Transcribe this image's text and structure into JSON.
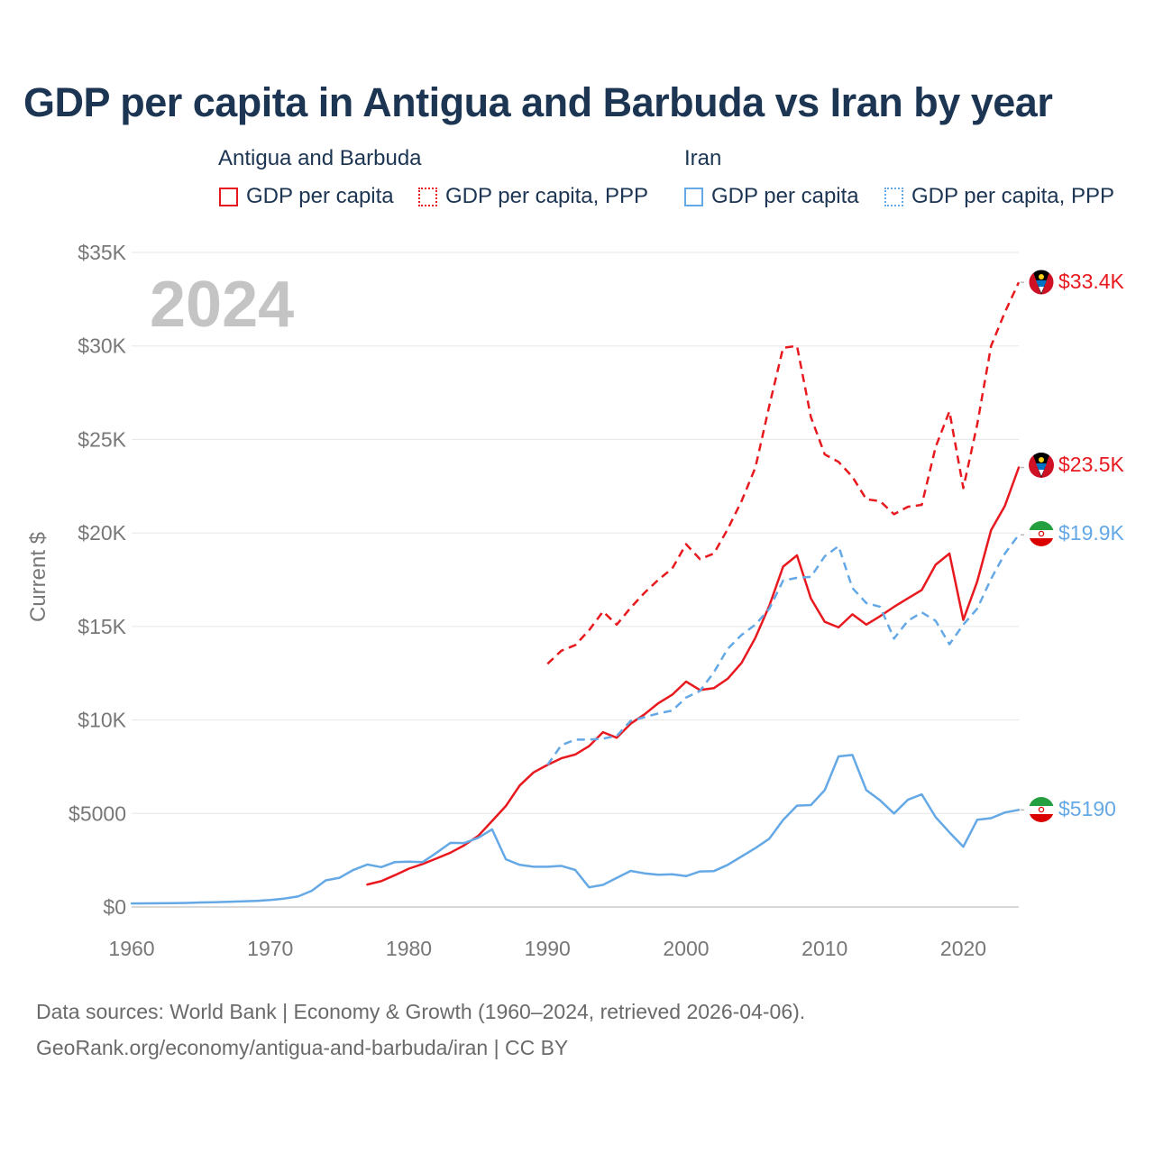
{
  "title": "GDP per capita in Antigua and Barbuda vs Iran by year",
  "legend": {
    "groups": [
      {
        "label": "Antigua and Barbuda",
        "color": "#e8191e",
        "items": [
          {
            "label": "GDP per capita",
            "style": "solid"
          },
          {
            "label": "GDP per capita, PPP",
            "style": "dotted"
          }
        ]
      },
      {
        "label": "Iran",
        "color": "#64a8e6",
        "items": [
          {
            "label": "GDP per capita",
            "style": "solid"
          },
          {
            "label": "GDP per capita, PPP",
            "style": "dotted"
          }
        ]
      }
    ]
  },
  "year_watermark": "2024",
  "end_labels": {
    "antigua_ppp": "$33.4K",
    "antigua_gdp": "$23.5K",
    "iran_ppp": "$19.9K",
    "iran_gdp": "$5190"
  },
  "source_line1": "Data sources: World Bank | Economy & Growth (1960–2024, retrieved 2026-04-06).",
  "source_line2": "GeoRank.org/economy/antigua-and-barbuda/iran | CC BY",
  "chart_data": {
    "type": "line",
    "title": "GDP per capita in Antigua and Barbuda vs Iran by year",
    "xlabel": "",
    "ylabel": "Current $",
    "xlim": [
      1960,
      2024
    ],
    "ylim": [
      0,
      35000
    ],
    "x_ticks": [
      1960,
      1970,
      1980,
      1990,
      2000,
      2010,
      2020
    ],
    "x_tick_labels": [
      "1960",
      "1970",
      "1980",
      "1990",
      "2000",
      "2010",
      "2020"
    ],
    "y_ticks": [
      0,
      5000,
      10000,
      15000,
      20000,
      25000,
      30000,
      35000
    ],
    "y_tick_labels": [
      "$0",
      "$5000",
      "$10K",
      "$15K",
      "$20K",
      "$25K",
      "$30K",
      "$35K"
    ],
    "grid": true,
    "series": [
      {
        "name": "Antigua and Barbuda GDP per capita",
        "color": "#e8191e",
        "dash": "solid",
        "x": [
          1977,
          1978,
          1979,
          1980,
          1981,
          1982,
          1983,
          1984,
          1985,
          1986,
          1987,
          1988,
          1989,
          1990,
          1991,
          1992,
          1993,
          1994,
          1995,
          1996,
          1997,
          1998,
          1999,
          2000,
          2001,
          2002,
          2003,
          2004,
          2005,
          2006,
          2007,
          2008,
          2009,
          2010,
          2011,
          2012,
          2013,
          2014,
          2015,
          2016,
          2017,
          2018,
          2019,
          2020,
          2021,
          2022,
          2023,
          2024
        ],
        "values": [
          1200,
          1380,
          1700,
          2050,
          2300,
          2600,
          2900,
          3300,
          3800,
          4600,
          5400,
          6500,
          7200,
          7600,
          7950,
          8150,
          8600,
          9350,
          9050,
          9800,
          10300,
          10900,
          11350,
          12050,
          11600,
          11700,
          12200,
          13050,
          14400,
          16100,
          18200,
          18800,
          16500,
          15250,
          14950,
          15650,
          15100,
          15550,
          16050,
          16500,
          16950,
          18300,
          18900,
          15350,
          17400,
          20150,
          21450,
          23500
        ]
      },
      {
        "name": "Antigua and Barbuda GDP per capita, PPP",
        "color": "#e8191e",
        "dash": "dashed",
        "x": [
          1990,
          1991,
          1992,
          1993,
          1994,
          1995,
          1996,
          1997,
          1998,
          1999,
          2000,
          2001,
          2002,
          2003,
          2004,
          2005,
          2006,
          2007,
          2008,
          2009,
          2010,
          2011,
          2012,
          2013,
          2014,
          2015,
          2016,
          2017,
          2018,
          2019,
          2020,
          2021,
          2022,
          2023,
          2024
        ],
        "values": [
          13000,
          13700,
          14000,
          14800,
          15800,
          15100,
          16000,
          16800,
          17500,
          18100,
          19400,
          18600,
          18900,
          20200,
          21700,
          23500,
          26800,
          29900,
          30000,
          26200,
          24200,
          23800,
          23000,
          21800,
          21700,
          21000,
          21400,
          21500,
          24600,
          26500,
          22400,
          25800,
          30000,
          31800,
          33400
        ]
      },
      {
        "name": "Iran GDP per capita",
        "color": "#64a8e6",
        "dash": "solid",
        "x": [
          1960,
          1961,
          1962,
          1963,
          1964,
          1965,
          1966,
          1967,
          1968,
          1969,
          1970,
          1971,
          1972,
          1973,
          1974,
          1975,
          1976,
          1977,
          1978,
          1979,
          1980,
          1981,
          1982,
          1983,
          1984,
          1985,
          1986,
          1987,
          1988,
          1989,
          1990,
          1991,
          1992,
          1993,
          1994,
          1995,
          1996,
          1997,
          1998,
          1999,
          2000,
          2001,
          2002,
          2003,
          2004,
          2005,
          2006,
          2007,
          2008,
          2009,
          2010,
          2011,
          2012,
          2013,
          2014,
          2015,
          2016,
          2017,
          2018,
          2019,
          2020,
          2021,
          2022,
          2023,
          2024
        ],
        "values": [
          190,
          195,
          200,
          205,
          215,
          240,
          255,
          275,
          300,
          330,
          370,
          450,
          560,
          870,
          1420,
          1560,
          1980,
          2270,
          2130,
          2400,
          2420,
          2400,
          2900,
          3430,
          3420,
          3700,
          4150,
          2550,
          2250,
          2150,
          2150,
          2200,
          1980,
          1050,
          1180,
          1550,
          1930,
          1800,
          1720,
          1750,
          1650,
          1900,
          1920,
          2250,
          2700,
          3150,
          3650,
          4650,
          5420,
          5450,
          6250,
          8050,
          8130,
          6250,
          5700,
          5000,
          5730,
          6020,
          4800,
          3990,
          3220,
          4660,
          4750,
          5050,
          5190
        ]
      },
      {
        "name": "Iran GDP per capita, PPP",
        "color": "#64a8e6",
        "dash": "dashed",
        "x": [
          1990,
          1991,
          1992,
          1993,
          1994,
          1995,
          1996,
          1997,
          1998,
          1999,
          2000,
          2001,
          2002,
          2003,
          2004,
          2005,
          2006,
          2007,
          2008,
          2009,
          2010,
          2011,
          2012,
          2013,
          2014,
          2015,
          2016,
          2017,
          2018,
          2019,
          2020,
          2021,
          2022,
          2023,
          2024
        ],
        "values": [
          7600,
          8650,
          8950,
          8950,
          9000,
          9150,
          9950,
          10150,
          10350,
          10500,
          11200,
          11550,
          12550,
          13800,
          14550,
          15100,
          15950,
          17450,
          17600,
          17650,
          18750,
          19300,
          17050,
          16250,
          16050,
          14350,
          15300,
          15750,
          15300,
          14050,
          15100,
          15950,
          17550,
          18900,
          19900
        ]
      }
    ]
  }
}
